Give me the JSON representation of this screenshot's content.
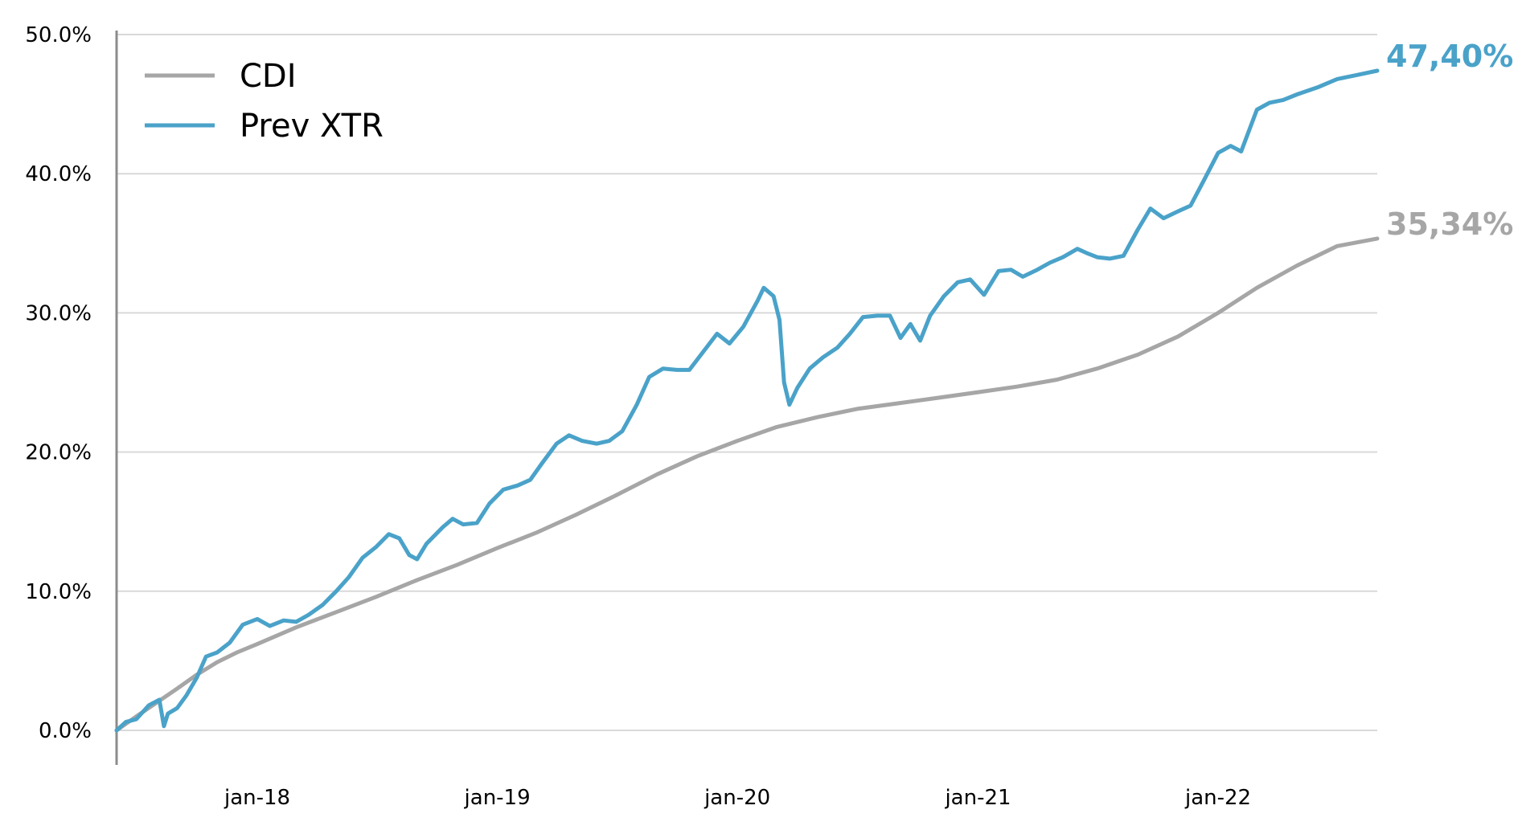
{
  "chart_data": {
    "type": "line",
    "xlim": [
      "2017-06-01",
      "2022-08-31"
    ],
    "ylim": [
      0,
      50
    ],
    "yticks": [
      0,
      10,
      20,
      30,
      40,
      50
    ],
    "ytick_labels": [
      "0.0%",
      "10.0%",
      "20.0%",
      "30.0%",
      "40.0%",
      "50.0%"
    ],
    "xticks": [
      "2018-01-01",
      "2019-01-01",
      "2020-01-01",
      "2021-01-01",
      "2022-01-01"
    ],
    "xtick_labels": [
      "jan-18",
      "jan-19",
      "jan-20",
      "jan-21",
      "jan-22"
    ],
    "grid": true,
    "legend": "top-left",
    "colors": {
      "CDI": "#a6a6a6",
      "Prev XTR": "#4aa2c9",
      "grid": "#d9d9d9",
      "axis": "#8c8c8c"
    },
    "series": [
      {
        "name": "CDI",
        "end_label": "35,34%",
        "points": [
          [
            "2017-06-01",
            0.0
          ],
          [
            "2017-07-01",
            1.0
          ],
          [
            "2017-08-01",
            2.0
          ],
          [
            "2017-09-01",
            3.0
          ],
          [
            "2017-10-01",
            4.0
          ],
          [
            "2017-11-01",
            4.9
          ],
          [
            "2017-12-01",
            5.6
          ],
          [
            "2018-01-01",
            6.2
          ],
          [
            "2018-03-01",
            7.4
          ],
          [
            "2018-05-01",
            8.5
          ],
          [
            "2018-07-01",
            9.6
          ],
          [
            "2018-09-01",
            10.8
          ],
          [
            "2018-11-01",
            11.9
          ],
          [
            "2019-01-01",
            13.1
          ],
          [
            "2019-03-01",
            14.2
          ],
          [
            "2019-05-01",
            15.5
          ],
          [
            "2019-07-01",
            16.9
          ],
          [
            "2019-09-01",
            18.4
          ],
          [
            "2019-11-01",
            19.7
          ],
          [
            "2020-01-01",
            20.8
          ],
          [
            "2020-03-01",
            21.8
          ],
          [
            "2020-05-01",
            22.5
          ],
          [
            "2020-07-01",
            23.1
          ],
          [
            "2020-09-01",
            23.5
          ],
          [
            "2020-11-01",
            23.9
          ],
          [
            "2021-01-01",
            24.3
          ],
          [
            "2021-03-01",
            24.7
          ],
          [
            "2021-05-01",
            25.2
          ],
          [
            "2021-07-01",
            26.0
          ],
          [
            "2021-09-01",
            27.0
          ],
          [
            "2021-11-01",
            28.3
          ],
          [
            "2022-01-01",
            30.0
          ],
          [
            "2022-03-01",
            31.8
          ],
          [
            "2022-05-01",
            33.4
          ],
          [
            "2022-07-01",
            34.8
          ],
          [
            "2022-08-31",
            35.34
          ]
        ]
      },
      {
        "name": "Prev XTR",
        "end_label": "47,40%",
        "points": [
          [
            "2017-06-01",
            0.0
          ],
          [
            "2017-06-15",
            0.6
          ],
          [
            "2017-07-01",
            0.8
          ],
          [
            "2017-07-20",
            1.8
          ],
          [
            "2017-08-05",
            2.2
          ],
          [
            "2017-08-12",
            0.3
          ],
          [
            "2017-08-18",
            1.2
          ],
          [
            "2017-09-01",
            1.6
          ],
          [
            "2017-09-15",
            2.5
          ],
          [
            "2017-10-01",
            3.8
          ],
          [
            "2017-10-15",
            5.3
          ],
          [
            "2017-11-01",
            5.6
          ],
          [
            "2017-11-20",
            6.3
          ],
          [
            "2017-12-10",
            7.6
          ],
          [
            "2018-01-01",
            8.0
          ],
          [
            "2018-01-20",
            7.5
          ],
          [
            "2018-02-10",
            7.9
          ],
          [
            "2018-03-01",
            7.8
          ],
          [
            "2018-03-20",
            8.3
          ],
          [
            "2018-04-10",
            9.0
          ],
          [
            "2018-05-01",
            10.0
          ],
          [
            "2018-05-20",
            11.0
          ],
          [
            "2018-06-10",
            12.4
          ],
          [
            "2018-07-01",
            13.2
          ],
          [
            "2018-07-20",
            14.1
          ],
          [
            "2018-08-05",
            13.8
          ],
          [
            "2018-08-20",
            12.6
          ],
          [
            "2018-09-01",
            12.3
          ],
          [
            "2018-09-15",
            13.4
          ],
          [
            "2018-10-10",
            14.6
          ],
          [
            "2018-10-25",
            15.2
          ],
          [
            "2018-11-10",
            14.8
          ],
          [
            "2018-12-01",
            14.9
          ],
          [
            "2018-12-20",
            16.3
          ],
          [
            "2019-01-10",
            17.3
          ],
          [
            "2019-02-01",
            17.6
          ],
          [
            "2019-02-20",
            18.0
          ],
          [
            "2019-03-10",
            19.2
          ],
          [
            "2019-04-01",
            20.6
          ],
          [
            "2019-04-20",
            21.2
          ],
          [
            "2019-05-10",
            20.8
          ],
          [
            "2019-06-01",
            20.6
          ],
          [
            "2019-06-20",
            20.8
          ],
          [
            "2019-07-10",
            21.5
          ],
          [
            "2019-08-01",
            23.4
          ],
          [
            "2019-08-20",
            25.4
          ],
          [
            "2019-09-10",
            26.0
          ],
          [
            "2019-10-01",
            25.9
          ],
          [
            "2019-10-20",
            25.9
          ],
          [
            "2019-11-10",
            27.2
          ],
          [
            "2019-12-01",
            28.5
          ],
          [
            "2019-12-20",
            27.8
          ],
          [
            "2020-01-10",
            29.0
          ],
          [
            "2020-02-01",
            30.9
          ],
          [
            "2020-02-10",
            31.8
          ],
          [
            "2020-02-25",
            31.2
          ],
          [
            "2020-03-05",
            29.5
          ],
          [
            "2020-03-12",
            25.0
          ],
          [
            "2020-03-20",
            23.4
          ],
          [
            "2020-04-01",
            24.6
          ],
          [
            "2020-04-20",
            26.0
          ],
          [
            "2020-05-10",
            26.8
          ],
          [
            "2020-06-01",
            27.5
          ],
          [
            "2020-06-20",
            28.5
          ],
          [
            "2020-07-10",
            29.7
          ],
          [
            "2020-08-01",
            29.8
          ],
          [
            "2020-08-20",
            29.8
          ],
          [
            "2020-09-05",
            28.2
          ],
          [
            "2020-09-20",
            29.2
          ],
          [
            "2020-10-05",
            28.0
          ],
          [
            "2020-10-20",
            29.8
          ],
          [
            "2020-11-10",
            31.2
          ],
          [
            "2020-12-01",
            32.2
          ],
          [
            "2020-12-20",
            32.4
          ],
          [
            "2021-01-10",
            31.3
          ],
          [
            "2021-02-01",
            33.0
          ],
          [
            "2021-02-20",
            33.1
          ],
          [
            "2021-03-10",
            32.6
          ],
          [
            "2021-04-01",
            33.1
          ],
          [
            "2021-04-20",
            33.6
          ],
          [
            "2021-05-10",
            34.0
          ],
          [
            "2021-06-01",
            34.6
          ],
          [
            "2021-06-15",
            34.3
          ],
          [
            "2021-07-01",
            34.0
          ],
          [
            "2021-07-20",
            33.9
          ],
          [
            "2021-08-10",
            34.1
          ],
          [
            "2021-09-01",
            36.0
          ],
          [
            "2021-09-20",
            37.5
          ],
          [
            "2021-10-10",
            36.8
          ],
          [
            "2021-11-01",
            37.3
          ],
          [
            "2021-11-20",
            37.7
          ],
          [
            "2021-12-10",
            39.5
          ],
          [
            "2022-01-01",
            41.5
          ],
          [
            "2022-01-20",
            42.0
          ],
          [
            "2022-02-05",
            41.6
          ],
          [
            "2022-03-01",
            44.6
          ],
          [
            "2022-03-20",
            45.1
          ],
          [
            "2022-04-10",
            45.3
          ],
          [
            "2022-05-01",
            45.7
          ],
          [
            "2022-06-01",
            46.2
          ],
          [
            "2022-07-01",
            46.8
          ],
          [
            "2022-08-01",
            47.1
          ],
          [
            "2022-08-31",
            47.4
          ]
        ]
      }
    ]
  }
}
